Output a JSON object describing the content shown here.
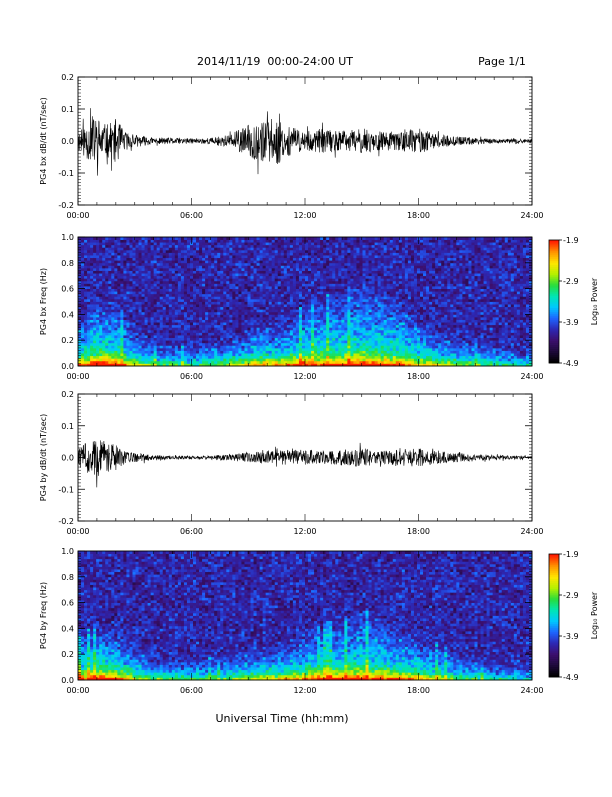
{
  "header": {
    "date_title": "2014/11/19  00:00-24:00 UT",
    "page_label": "Page 1/1"
  },
  "footer": {
    "xlabel": "Universal Time (hh:mm)"
  },
  "colors": {
    "trace": "#000000",
    "colormap": [
      "#000000",
      "#1e0a3c",
      "#3c0f6e",
      "#2d28b4",
      "#1e64ff",
      "#00c8ff",
      "#00e6b4",
      "#28dc3c",
      "#b4f000",
      "#ffe600",
      "#ff9600",
      "#ff1e00"
    ]
  },
  "chart_data": [
    {
      "type": "line",
      "ylabel": "PG4 bx dB/dt (nT/sec)",
      "ylim": [
        -0.2,
        0.2
      ],
      "yticks": [
        "0.2",
        "0.1",
        "0.0",
        "-0.1",
        "-0.2"
      ],
      "xticks": [
        "00:00",
        "06:00",
        "12:00",
        "18:00",
        "24:00"
      ],
      "xlim_hours": [
        0,
        24
      ],
      "envelope": {
        "hours": [
          0,
          0.5,
          1,
          1.5,
          2,
          2.5,
          3,
          4,
          5,
          6,
          7,
          8,
          9,
          9.5,
          10,
          10.5,
          11,
          11.5,
          12,
          13,
          14,
          15,
          16,
          17,
          18,
          19,
          20,
          21,
          22,
          23,
          24
        ],
        "amplitude": [
          0.03,
          0.06,
          0.08,
          0.05,
          0.07,
          0.03,
          0.02,
          0.01,
          0.01,
          0.008,
          0.01,
          0.02,
          0.05,
          0.07,
          0.06,
          0.08,
          0.05,
          0.04,
          0.03,
          0.04,
          0.03,
          0.04,
          0.03,
          0.03,
          0.04,
          0.02,
          0.015,
          0.01,
          0.008,
          0.006,
          0.006
        ]
      }
    },
    {
      "type": "heatmap",
      "ylabel": "PG4 bx Freq (Hz)",
      "ylim": [
        0,
        1.0
      ],
      "yticks": [
        "1.0",
        "0.8",
        "0.6",
        "0.4",
        "0.2",
        "0.0"
      ],
      "xticks": [
        "00:00",
        "06:00",
        "12:00",
        "18:00",
        "24:00"
      ],
      "colorbar": {
        "label": "Log₁₀ Power",
        "ticks": [
          "-1.9",
          "-2.9",
          "-3.9",
          "-4.9"
        ],
        "range": [
          -4.9,
          -1.9
        ]
      },
      "activity": {
        "hours": [
          0,
          1,
          2,
          3,
          4,
          6,
          8,
          10,
          11,
          12,
          13,
          14,
          15,
          16,
          17,
          18,
          19,
          20,
          22,
          24
        ],
        "intensity": [
          0.55,
          0.75,
          0.7,
          0.45,
          0.35,
          0.3,
          0.4,
          0.55,
          0.55,
          0.7,
          0.65,
          0.7,
          0.75,
          0.7,
          0.65,
          0.55,
          0.45,
          0.4,
          0.3,
          0.25
        ],
        "max_freq_hz": [
          0.4,
          0.55,
          0.5,
          0.3,
          0.2,
          0.15,
          0.25,
          0.35,
          0.35,
          0.5,
          0.55,
          0.6,
          0.65,
          0.6,
          0.55,
          0.4,
          0.3,
          0.25,
          0.15,
          0.1
        ]
      }
    },
    {
      "type": "line",
      "ylabel": "PG4 by dB/dt (nT/sec)",
      "ylim": [
        -0.2,
        0.2
      ],
      "yticks": [
        "0.2",
        "0.1",
        "0.0",
        "-0.1",
        "-0.2"
      ],
      "xticks": [
        "00:00",
        "06:00",
        "12:00",
        "18:00",
        "24:00"
      ],
      "xlim_hours": [
        0,
        24
      ],
      "envelope": {
        "hours": [
          0,
          0.5,
          1,
          1.5,
          2,
          2.5,
          3,
          4,
          5,
          6,
          7,
          8,
          9,
          10,
          11,
          12,
          13,
          14,
          15,
          16,
          17,
          18,
          19,
          20,
          21,
          22,
          23,
          24
        ],
        "amplitude": [
          0.03,
          0.05,
          0.06,
          0.05,
          0.04,
          0.02,
          0.015,
          0.008,
          0.006,
          0.005,
          0.006,
          0.01,
          0.015,
          0.02,
          0.025,
          0.025,
          0.02,
          0.025,
          0.03,
          0.02,
          0.025,
          0.03,
          0.02,
          0.015,
          0.01,
          0.008,
          0.006,
          0.005
        ]
      }
    },
    {
      "type": "heatmap",
      "ylabel": "PG4 by Freq (Hz)",
      "ylim": [
        0,
        1.0
      ],
      "yticks": [
        "1.0",
        "0.8",
        "0.6",
        "0.4",
        "0.2",
        "0.0"
      ],
      "xticks": [
        "00:00",
        "06:00",
        "12:00",
        "18:00",
        "24:00"
      ],
      "colorbar": {
        "label": "Log₁₀ Power",
        "ticks": [
          "-1.9",
          "-2.9",
          "-3.9",
          "-4.9"
        ],
        "range": [
          -4.9,
          -1.9
        ]
      },
      "activity": {
        "hours": [
          0,
          1,
          2,
          3,
          4,
          6,
          8,
          10,
          11,
          12,
          13,
          14,
          15,
          16,
          17,
          18,
          19,
          20,
          22,
          24
        ],
        "intensity": [
          0.6,
          0.7,
          0.65,
          0.45,
          0.35,
          0.3,
          0.35,
          0.45,
          0.5,
          0.6,
          0.6,
          0.65,
          0.7,
          0.65,
          0.6,
          0.55,
          0.45,
          0.35,
          0.25,
          0.2
        ],
        "max_freq_hz": [
          0.35,
          0.45,
          0.4,
          0.3,
          0.2,
          0.15,
          0.2,
          0.3,
          0.3,
          0.4,
          0.45,
          0.5,
          0.55,
          0.5,
          0.45,
          0.35,
          0.3,
          0.2,
          0.12,
          0.1
        ]
      }
    }
  ]
}
